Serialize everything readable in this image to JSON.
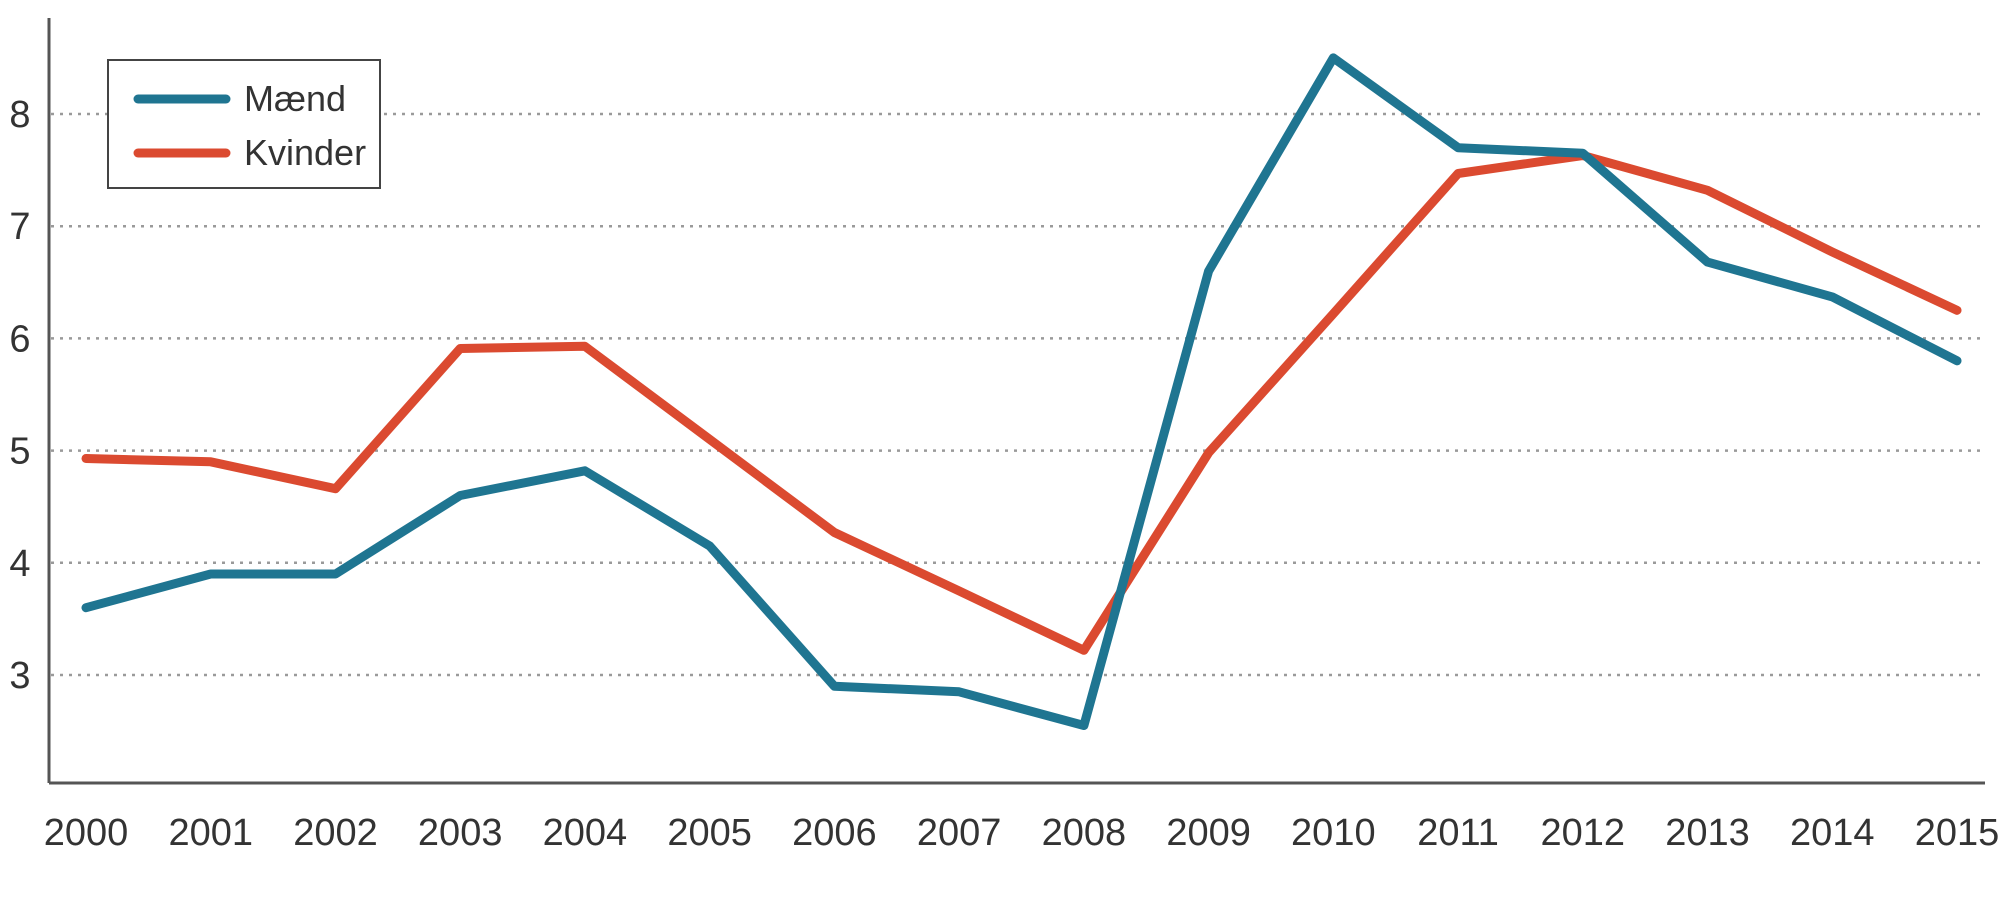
{
  "chart_data": {
    "type": "line",
    "title": "",
    "xlabel": "",
    "ylabel": "",
    "categories": [
      "2000",
      "2001",
      "2002",
      "2003",
      "2004",
      "2005",
      "2006",
      "2007",
      "2008",
      "2009",
      "2010",
      "2011",
      "2012",
      "2013",
      "2014",
      "2015"
    ],
    "series": [
      {
        "name": "Mænd",
        "color": "#1f7591",
        "values": [
          3.6,
          3.9,
          3.9,
          4.6,
          4.82,
          4.15,
          2.9,
          2.85,
          2.55,
          6.6,
          8.5,
          7.7,
          7.65,
          6.68,
          6.37,
          5.8
        ]
      },
      {
        "name": "Kvinder",
        "color": "#db4a30",
        "values": [
          4.93,
          4.9,
          4.66,
          5.91,
          5.93,
          5.1,
          4.27,
          3.75,
          3.22,
          4.98,
          6.22,
          7.47,
          7.63,
          7.32,
          6.77,
          6.25
        ]
      }
    ],
    "yticks": [
      3,
      4,
      5,
      6,
      7,
      8
    ],
    "ylim": [
      2.0,
      8.85
    ],
    "grid": "horizontal dotted",
    "legend": {
      "position": "top-left",
      "entries": [
        "Mænd",
        "Kvinder"
      ]
    }
  }
}
